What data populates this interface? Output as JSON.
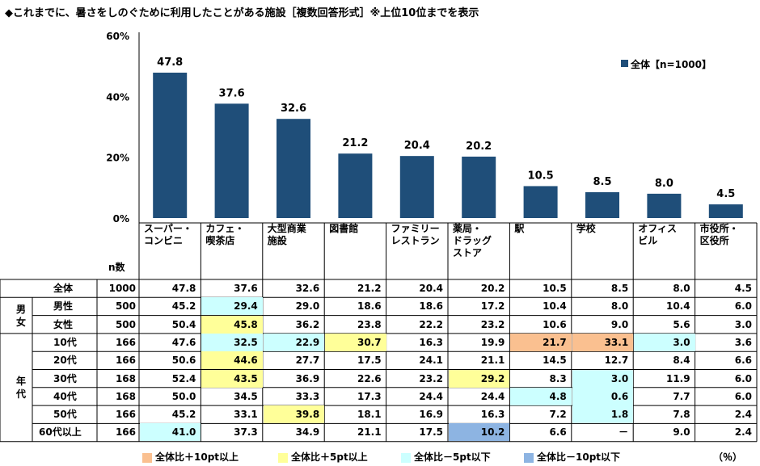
{
  "title": "◆これまでに、暑さをしのぐために利用したことがある施設［複数回答形式］※上位10位までを表示",
  "legend": {
    "series_label": "全体【n=1000】",
    "series_color": "#1f4e79"
  },
  "n_header": "n数",
  "colors": {
    "bar": "#1f4e79",
    "orange": "#fac090",
    "yellow": "#ffff99",
    "cyan": "#ccffff",
    "blue": "#8db4e2"
  },
  "chart_data": {
    "type": "bar",
    "categories": [
      "スーパー・\nコンビニ",
      "カフェ・\n喫茶店",
      "大型商業\n施設",
      "図書館",
      "ファミリー\nレストラン",
      "薬局・\nドラッグ\nストア",
      "駅",
      "学校",
      "オフィス\nビル",
      "市役所・\n区役所"
    ],
    "values": [
      47.8,
      37.6,
      32.6,
      21.2,
      20.4,
      20.2,
      10.5,
      8.5,
      8.0,
      4.5
    ],
    "ylim": [
      0,
      60
    ],
    "yticks": [
      "0%",
      "20%",
      "40%",
      "60%"
    ],
    "series": [
      {
        "name": "全体【n=1000】",
        "values": [
          47.8,
          37.6,
          32.6,
          21.2,
          20.4,
          20.2,
          10.5,
          8.5,
          8.0,
          4.5
        ]
      }
    ]
  },
  "groups": [
    {
      "label": "男\n女",
      "rows": [
        1,
        2
      ]
    },
    {
      "label": "年\n代",
      "rows": [
        3,
        8
      ]
    }
  ],
  "table": [
    {
      "label": "全体",
      "n": "1000",
      "values": [
        "47.8",
        "37.6",
        "32.6",
        "21.2",
        "20.4",
        "20.2",
        "10.5",
        "8.5",
        "8.0",
        "4.5"
      ],
      "hl": [
        "",
        "",
        "",
        "",
        "",
        "",
        "",
        "",
        "",
        ""
      ]
    },
    {
      "label": "男性",
      "n": "500",
      "values": [
        "45.2",
        "29.4",
        "29.0",
        "18.6",
        "18.6",
        "17.2",
        "10.4",
        "8.0",
        "10.4",
        "6.0"
      ],
      "hl": [
        "",
        "cyan",
        "",
        "",
        "",
        "",
        "",
        "",
        "",
        ""
      ]
    },
    {
      "label": "女性",
      "n": "500",
      "values": [
        "50.4",
        "45.8",
        "36.2",
        "23.8",
        "22.2",
        "23.2",
        "10.6",
        "9.0",
        "5.6",
        "3.0"
      ],
      "hl": [
        "",
        "yellow",
        "",
        "",
        "",
        "",
        "",
        "",
        "",
        ""
      ]
    },
    {
      "label": "10代",
      "n": "166",
      "values": [
        "47.6",
        "32.5",
        "22.9",
        "30.7",
        "16.3",
        "19.9",
        "21.7",
        "33.1",
        "3.0",
        "3.6"
      ],
      "hl": [
        "",
        "cyan",
        "cyan",
        "yellow",
        "",
        "",
        "orange",
        "orange",
        "cyan",
        ""
      ]
    },
    {
      "label": "20代",
      "n": "166",
      "values": [
        "50.6",
        "44.6",
        "27.7",
        "17.5",
        "24.1",
        "21.1",
        "14.5",
        "12.7",
        "8.4",
        "6.6"
      ],
      "hl": [
        "",
        "yellow",
        "",
        "",
        "",
        "",
        "",
        "",
        "",
        ""
      ]
    },
    {
      "label": "30代",
      "n": "168",
      "values": [
        "52.4",
        "43.5",
        "36.9",
        "22.6",
        "23.2",
        "29.2",
        "8.3",
        "3.0",
        "11.9",
        "6.0"
      ],
      "hl": [
        "",
        "yellow",
        "",
        "",
        "",
        "yellow",
        "",
        "cyan",
        "",
        ""
      ]
    },
    {
      "label": "40代",
      "n": "168",
      "values": [
        "50.0",
        "34.5",
        "33.3",
        "17.3",
        "24.4",
        "24.4",
        "4.8",
        "0.6",
        "7.7",
        "6.0"
      ],
      "hl": [
        "",
        "",
        "",
        "",
        "",
        "",
        "cyan",
        "cyan",
        "",
        ""
      ]
    },
    {
      "label": "50代",
      "n": "166",
      "values": [
        "45.2",
        "33.1",
        "39.8",
        "18.1",
        "16.9",
        "16.3",
        "7.2",
        "1.8",
        "7.8",
        "2.4"
      ],
      "hl": [
        "",
        "",
        "yellow",
        "",
        "",
        "",
        "",
        "cyan",
        "",
        ""
      ]
    },
    {
      "label": "60代以上",
      "n": "166",
      "values": [
        "41.0",
        "37.3",
        "34.9",
        "21.1",
        "17.5",
        "10.2",
        "6.6",
        "－",
        "9.0",
        "2.4"
      ],
      "hl": [
        "cyan",
        "",
        "",
        "",
        "",
        "blue",
        "",
        "",
        "",
        ""
      ]
    }
  ],
  "footer_legend": [
    {
      "label": "全体比＋10pt以上",
      "color": "#fac090"
    },
    {
      "label": "全体比＋5pt以上",
      "color": "#ffff99"
    },
    {
      "label": "全体比－5pt以下",
      "color": "#ccffff"
    },
    {
      "label": "全体比－10pt以下",
      "color": "#8db4e2"
    }
  ],
  "unit": "（％）"
}
